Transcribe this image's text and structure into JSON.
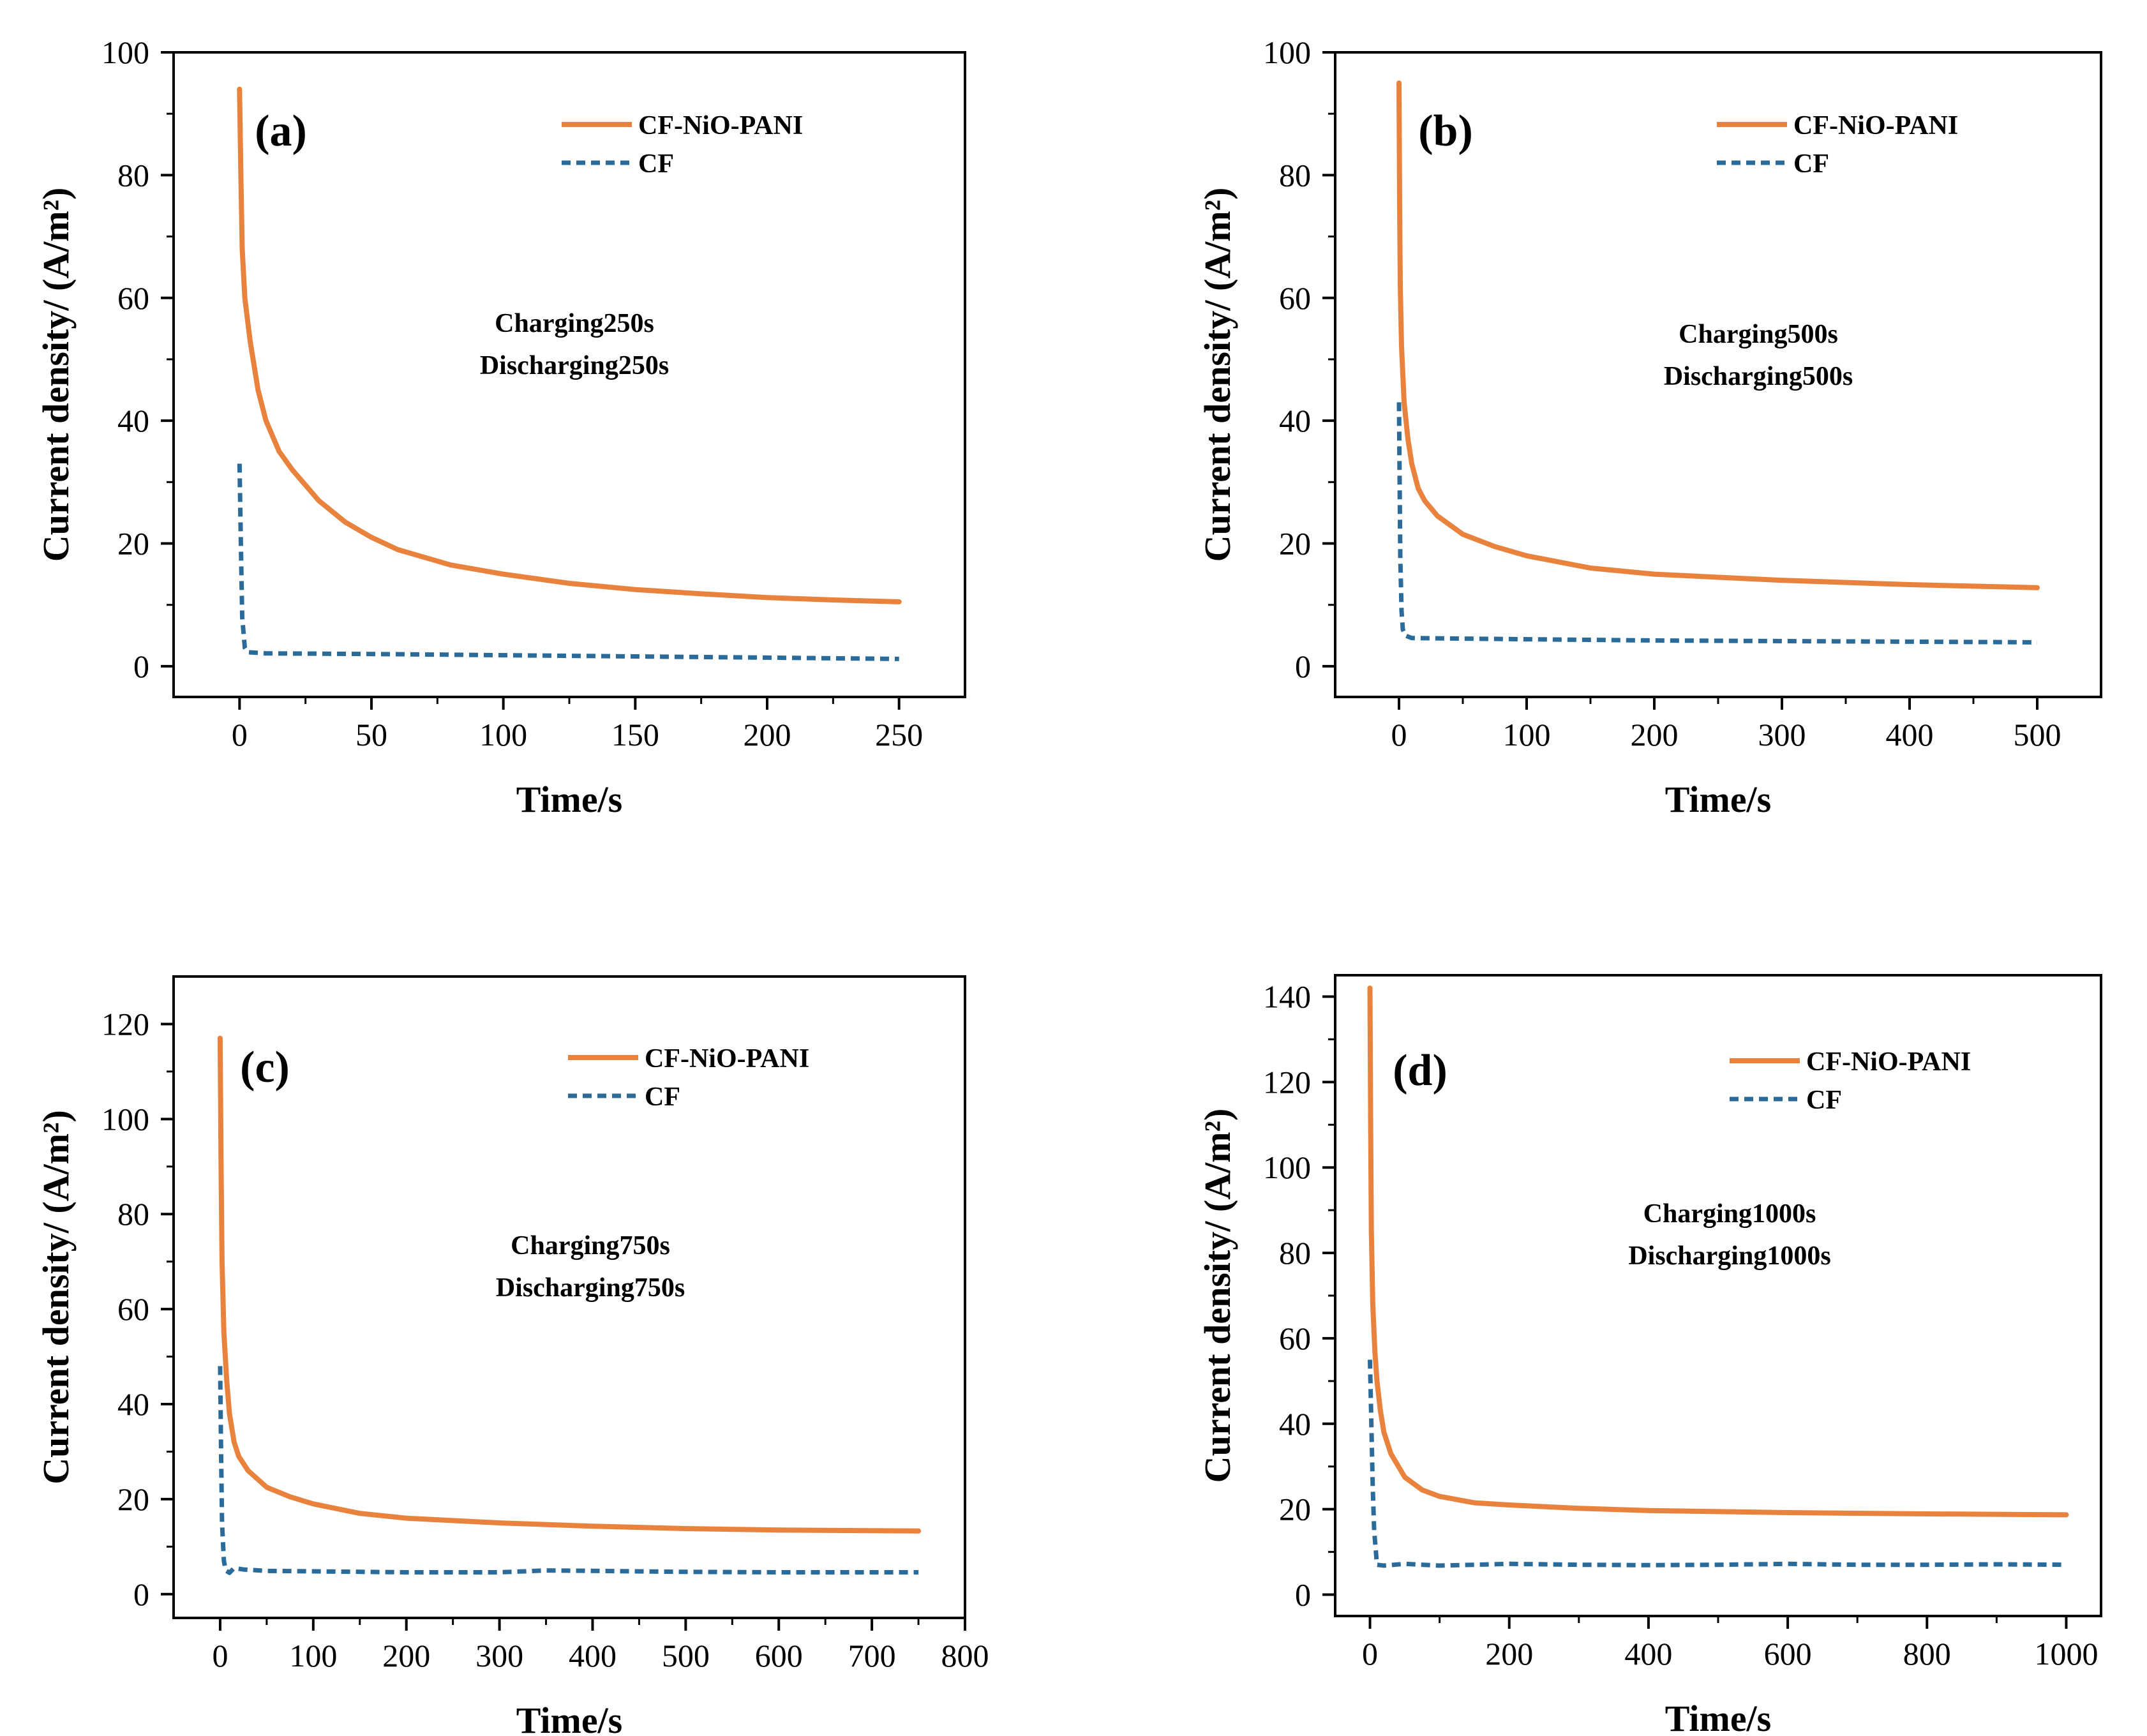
{
  "colors": {
    "cf_nio_pani": "#E8823C",
    "cf": "#2A6B9A",
    "axis": "#000000"
  },
  "chart_data": [
    {
      "type": "line",
      "panel_label": "(a)",
      "xlabel": "Time/s",
      "ylabel": "Current density/ (A/m²)",
      "xlim": [
        -25,
        275
      ],
      "ylim": [
        -5,
        100
      ],
      "xticks": [
        0,
        50,
        100,
        150,
        200,
        250
      ],
      "yticks": [
        0,
        20,
        40,
        60,
        80,
        100
      ],
      "legend": [
        "CF-NiO-PANI",
        "CF"
      ],
      "legend_position": "top-right",
      "annotation": [
        "Charging250s",
        "Discharging250s"
      ],
      "series": [
        {
          "name": "CF-NiO-PANI",
          "style": "solid",
          "points": [
            [
              0,
              94
            ],
            [
              0.5,
              80
            ],
            [
              1,
              68
            ],
            [
              2,
              60
            ],
            [
              4,
              53
            ],
            [
              7,
              45
            ],
            [
              10,
              40
            ],
            [
              15,
              35
            ],
            [
              20,
              32
            ],
            [
              30,
              27
            ],
            [
              40,
              23.5
            ],
            [
              50,
              21
            ],
            [
              60,
              19
            ],
            [
              80,
              16.5
            ],
            [
              100,
              15
            ],
            [
              125,
              13.5
            ],
            [
              150,
              12.5
            ],
            [
              175,
              11.8
            ],
            [
              200,
              11.2
            ],
            [
              225,
              10.8
            ],
            [
              250,
              10.5
            ]
          ]
        },
        {
          "name": "CF",
          "style": "dashed",
          "points": [
            [
              0,
              33
            ],
            [
              0.5,
              20
            ],
            [
              1,
              8
            ],
            [
              2,
              3
            ],
            [
              3,
              2.3
            ],
            [
              10,
              2.1
            ],
            [
              50,
              2
            ],
            [
              100,
              1.8
            ],
            [
              150,
              1.6
            ],
            [
              200,
              1.4
            ],
            [
              250,
              1.2
            ]
          ]
        }
      ]
    },
    {
      "type": "line",
      "panel_label": "(b)",
      "xlabel": "Time/s",
      "ylabel": "Current density/ (A/m²)",
      "xlim": [
        -50,
        550
      ],
      "ylim": [
        -5,
        100
      ],
      "xticks": [
        0,
        100,
        200,
        300,
        400,
        500
      ],
      "yticks": [
        0,
        20,
        40,
        60,
        80,
        100
      ],
      "legend": [
        "CF-NiO-PANI",
        "CF"
      ],
      "legend_position": "top-right",
      "annotation": [
        "Charging500s",
        "Discharging500s"
      ],
      "series": [
        {
          "name": "CF-NiO-PANI",
          "style": "solid",
          "points": [
            [
              0,
              95
            ],
            [
              0.5,
              75
            ],
            [
              1,
              62
            ],
            [
              2,
              52
            ],
            [
              4,
              43
            ],
            [
              7,
              37
            ],
            [
              10,
              33
            ],
            [
              15,
              29
            ],
            [
              20,
              27
            ],
            [
              30,
              24.5
            ],
            [
              50,
              21.5
            ],
            [
              75,
              19.5
            ],
            [
              100,
              18
            ],
            [
              150,
              16
            ],
            [
              200,
              15
            ],
            [
              300,
              14
            ],
            [
              400,
              13.3
            ],
            [
              500,
              12.8
            ]
          ]
        },
        {
          "name": "CF",
          "style": "dashed",
          "points": [
            [
              0,
              43
            ],
            [
              0.5,
              30
            ],
            [
              1,
              18
            ],
            [
              2,
              9
            ],
            [
              3,
              6
            ],
            [
              5,
              5
            ],
            [
              10,
              4.6
            ],
            [
              100,
              4.4
            ],
            [
              200,
              4.2
            ],
            [
              300,
              4.1
            ],
            [
              400,
              4
            ],
            [
              500,
              3.9
            ]
          ]
        }
      ]
    },
    {
      "type": "line",
      "panel_label": "(c)",
      "xlabel": "Time/s",
      "ylabel": "Current density/ (A/m²)",
      "xlim": [
        -50,
        800
      ],
      "ylim": [
        -5,
        130
      ],
      "xticks": [
        0,
        100,
        200,
        300,
        400,
        500,
        600,
        700,
        800
      ],
      "yticks": [
        0,
        20,
        40,
        60,
        80,
        100,
        120
      ],
      "legend": [
        "CF-NiO-PANI",
        "CF"
      ],
      "legend_position": "top-right",
      "annotation": [
        "Charging750s",
        "Discharging750s"
      ],
      "series": [
        {
          "name": "CF-NiO-PANI",
          "style": "solid",
          "points": [
            [
              0,
              117
            ],
            [
              1,
              90
            ],
            [
              2,
              70
            ],
            [
              4,
              55
            ],
            [
              7,
              45
            ],
            [
              10,
              38
            ],
            [
              15,
              32
            ],
            [
              20,
              29
            ],
            [
              30,
              26
            ],
            [
              50,
              22.5
            ],
            [
              75,
              20.5
            ],
            [
              100,
              19
            ],
            [
              150,
              17
            ],
            [
              200,
              16
            ],
            [
              300,
              15
            ],
            [
              400,
              14.3
            ],
            [
              500,
              13.8
            ],
            [
              600,
              13.5
            ],
            [
              750,
              13.3
            ]
          ]
        },
        {
          "name": "CF",
          "style": "dashed",
          "points": [
            [
              0,
              48
            ],
            [
              1,
              30
            ],
            [
              2,
              15
            ],
            [
              4,
              7
            ],
            [
              6,
              5
            ],
            [
              10,
              4.5
            ],
            [
              15,
              5.5
            ],
            [
              25,
              5.2
            ],
            [
              50,
              4.9
            ],
            [
              100,
              4.8
            ],
            [
              200,
              4.6
            ],
            [
              300,
              4.6
            ],
            [
              350,
              5
            ],
            [
              400,
              4.9
            ],
            [
              500,
              4.7
            ],
            [
              600,
              4.6
            ],
            [
              750,
              4.6
            ]
          ]
        }
      ]
    },
    {
      "type": "line",
      "panel_label": "(d)",
      "xlabel": "Time/s",
      "ylabel": "Current density/ (A/m²)",
      "xlim": [
        -50,
        1050
      ],
      "ylim": [
        -5,
        145
      ],
      "xticks": [
        0,
        200,
        400,
        600,
        800,
        1000
      ],
      "yticks": [
        0,
        20,
        40,
        60,
        80,
        100,
        120,
        140
      ],
      "legend": [
        "CF-NiO-PANI",
        "CF"
      ],
      "legend_position": "top-right",
      "annotation": [
        "Charging1000s",
        "Discharging1000s"
      ],
      "series": [
        {
          "name": "CF-NiO-PANI",
          "style": "solid",
          "points": [
            [
              0,
              142
            ],
            [
              1,
              110
            ],
            [
              2,
              85
            ],
            [
              4,
              68
            ],
            [
              7,
              57
            ],
            [
              10,
              50
            ],
            [
              15,
              43
            ],
            [
              20,
              38
            ],
            [
              30,
              33
            ],
            [
              50,
              27.5
            ],
            [
              75,
              24.5
            ],
            [
              100,
              23
            ],
            [
              150,
              21.5
            ],
            [
              200,
              21
            ],
            [
              300,
              20.2
            ],
            [
              400,
              19.7
            ],
            [
              600,
              19.2
            ],
            [
              800,
              18.9
            ],
            [
              1000,
              18.7
            ]
          ]
        },
        {
          "name": "CF",
          "style": "dashed",
          "points": [
            [
              0,
              55
            ],
            [
              2,
              40
            ],
            [
              4,
              25
            ],
            [
              6,
              15
            ],
            [
              10,
              7
            ],
            [
              20,
              6.8
            ],
            [
              50,
              7.2
            ],
            [
              100,
              6.8
            ],
            [
              150,
              7
            ],
            [
              200,
              7.2
            ],
            [
              300,
              7
            ],
            [
              400,
              6.9
            ],
            [
              500,
              7
            ],
            [
              600,
              7.2
            ],
            [
              700,
              7
            ],
            [
              800,
              7
            ],
            [
              900,
              7.1
            ],
            [
              1000,
              7
            ]
          ]
        }
      ]
    }
  ]
}
